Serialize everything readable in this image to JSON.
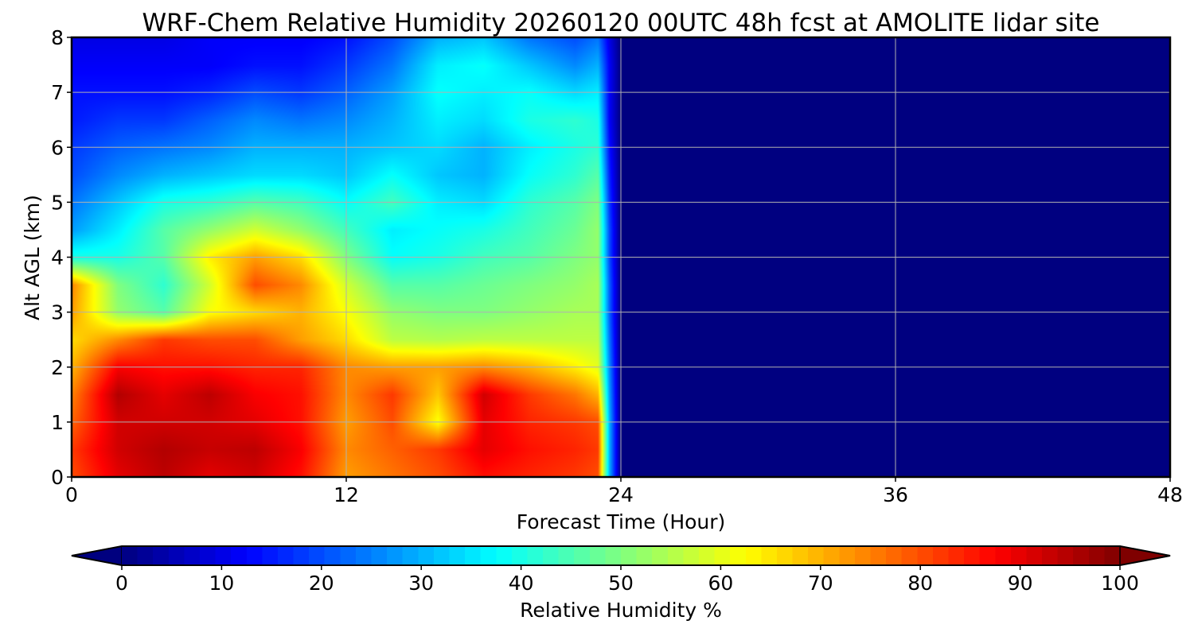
{
  "chart_data": {
    "type": "heatmap",
    "title": "WRF-Chem Relative Humidity 20260120 00UTC 48h fcst at AMOLITE lidar site",
    "xlabel": "Forecast Time (Hour)",
    "ylabel": "Alt AGL (km)",
    "xlim": [
      0,
      48
    ],
    "ylim": [
      0,
      8
    ],
    "xticks": [
      0,
      12,
      24,
      36,
      48
    ],
    "yticks": [
      0,
      1,
      2,
      3,
      4,
      5,
      6,
      7,
      8
    ],
    "grid": true,
    "colorbar": {
      "label": "Relative Humidity %",
      "colormap": "jet",
      "range": [
        0,
        100
      ],
      "ticks": [
        0,
        10,
        20,
        30,
        40,
        50,
        60,
        70,
        80,
        90,
        100
      ],
      "extend": "both",
      "under_color": "#00007f",
      "over_color": "#7f0000"
    },
    "x": [
      0,
      2,
      4,
      6,
      8,
      10,
      12,
      14,
      16,
      18,
      20,
      22,
      23,
      23.5,
      24,
      26,
      30,
      36,
      42,
      48
    ],
    "y": [
      0,
      0.5,
      1,
      1.5,
      2,
      2.5,
      3,
      3.5,
      4,
      4.5,
      5,
      5.5,
      6,
      6.5,
      7,
      7.5,
      8
    ],
    "z": [
      [
        80,
        90,
        94,
        90,
        92,
        86,
        72,
        76,
        80,
        86,
        84,
        82,
        80,
        30,
        0,
        0,
        0,
        0,
        0,
        0
      ],
      [
        82,
        92,
        95,
        93,
        94,
        88,
        74,
        78,
        82,
        90,
        86,
        84,
        82,
        30,
        0,
        0,
        0,
        0,
        0,
        0
      ],
      [
        78,
        92,
        92,
        92,
        90,
        86,
        72,
        80,
        62,
        90,
        84,
        82,
        80,
        30,
        0,
        0,
        0,
        0,
        0,
        0
      ],
      [
        75,
        95,
        90,
        94,
        88,
        86,
        74,
        82,
        68,
        92,
        82,
        76,
        70,
        28,
        0,
        0,
        0,
        0,
        0,
        0
      ],
      [
        70,
        88,
        86,
        86,
        84,
        84,
        74,
        72,
        72,
        74,
        70,
        64,
        60,
        26,
        0,
        0,
        0,
        0,
        0,
        0
      ],
      [
        66,
        74,
        82,
        80,
        80,
        72,
        66,
        56,
        55,
        56,
        56,
        56,
        56,
        24,
        0,
        0,
        0,
        0,
        0,
        0
      ],
      [
        72,
        52,
        46,
        62,
        66,
        70,
        62,
        52,
        50,
        50,
        52,
        54,
        54,
        22,
        0,
        0,
        0,
        0,
        0,
        0
      ],
      [
        74,
        50,
        42,
        58,
        80,
        74,
        58,
        46,
        46,
        48,
        50,
        52,
        54,
        22,
        0,
        0,
        0,
        0,
        0,
        0
      ],
      [
        40,
        40,
        46,
        64,
        72,
        66,
        50,
        38,
        40,
        44,
        46,
        50,
        52,
        20,
        0,
        0,
        0,
        0,
        0,
        0
      ],
      [
        28,
        36,
        46,
        52,
        58,
        52,
        44,
        36,
        38,
        40,
        44,
        48,
        52,
        20,
        0,
        0,
        0,
        0,
        0,
        0
      ],
      [
        24,
        32,
        40,
        42,
        46,
        44,
        38,
        44,
        36,
        34,
        42,
        46,
        50,
        18,
        0,
        0,
        0,
        0,
        0,
        0
      ],
      [
        20,
        26,
        30,
        32,
        34,
        34,
        32,
        38,
        32,
        30,
        38,
        42,
        46,
        16,
        0,
        0,
        0,
        0,
        0,
        0
      ],
      [
        18,
        22,
        24,
        26,
        30,
        30,
        30,
        32,
        34,
        30,
        36,
        40,
        42,
        14,
        0,
        0,
        0,
        0,
        0,
        0
      ],
      [
        15,
        18,
        18,
        22,
        26,
        24,
        26,
        30,
        36,
        34,
        40,
        42,
        40,
        12,
        0,
        0,
        0,
        0,
        0,
        0
      ],
      [
        14,
        14,
        14,
        16,
        20,
        18,
        22,
        28,
        38,
        36,
        38,
        34,
        36,
        12,
        0,
        0,
        0,
        0,
        0,
        0
      ],
      [
        12,
        12,
        12,
        12,
        14,
        14,
        18,
        24,
        36,
        38,
        32,
        26,
        30,
        12,
        0,
        0,
        0,
        0,
        0,
        0
      ],
      [
        10,
        10,
        10,
        12,
        12,
        12,
        14,
        20,
        30,
        32,
        24,
        20,
        24,
        10,
        0,
        0,
        0,
        0,
        0,
        0
      ]
    ]
  }
}
